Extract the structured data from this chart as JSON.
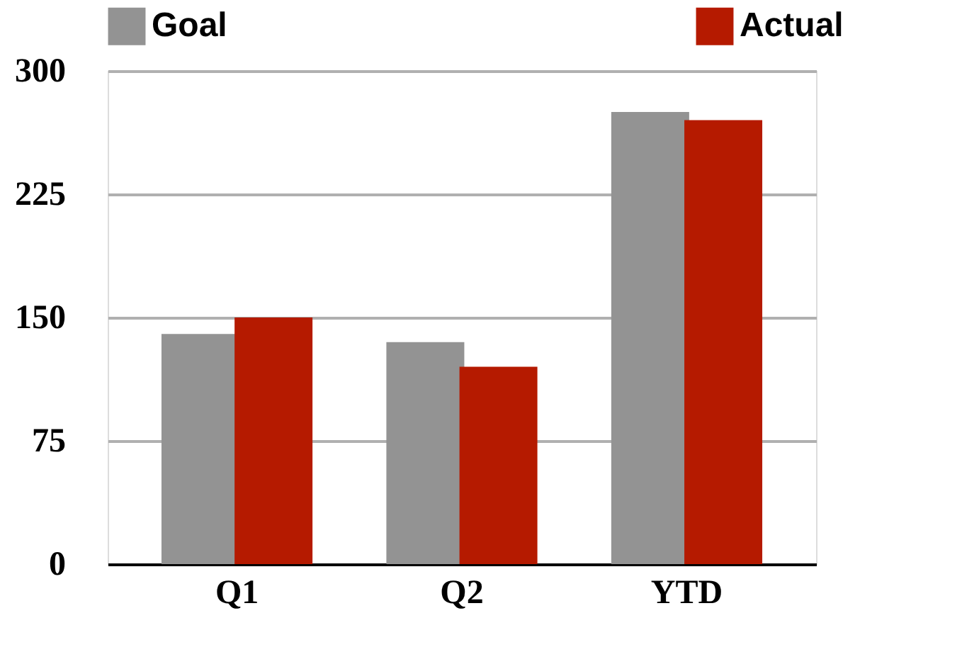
{
  "chart_data": {
    "type": "bar",
    "categories": [
      "Q1",
      "Q2",
      "YTD"
    ],
    "series": [
      {
        "name": "Goal",
        "color": "#939393",
        "values": [
          140,
          135,
          275
        ]
      },
      {
        "name": "Actual",
        "color": "#b51a00",
        "values": [
          150,
          120,
          270
        ]
      }
    ],
    "ylim": [
      0,
      300
    ],
    "yticks": [
      0,
      75,
      150,
      225,
      300
    ],
    "grid": "y",
    "legend": "top"
  }
}
